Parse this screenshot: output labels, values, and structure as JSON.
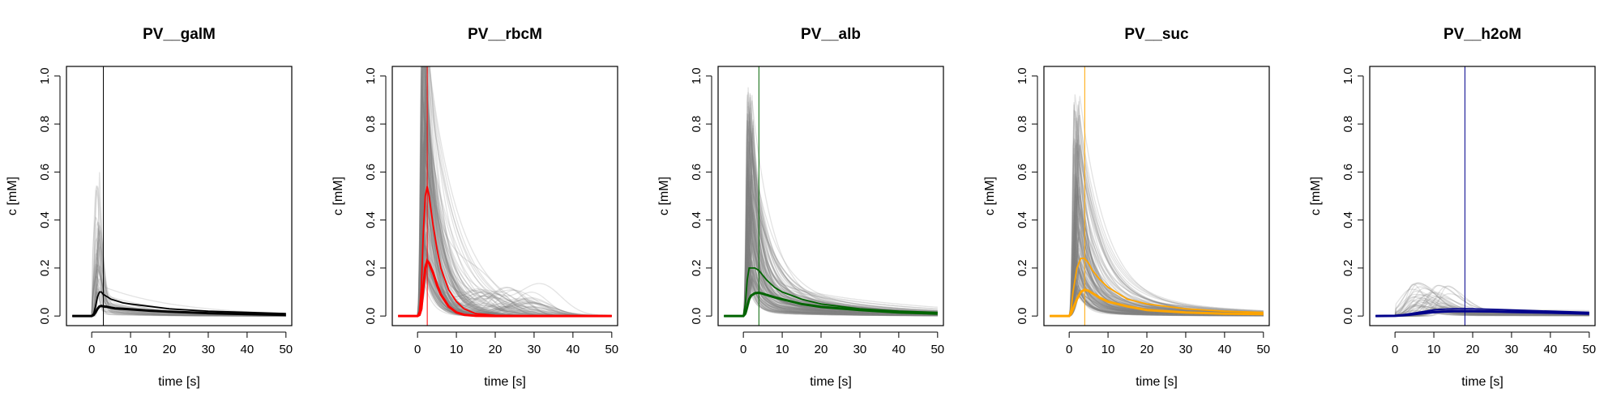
{
  "chart_data": [
    {
      "type": "line",
      "title": "PV__galM",
      "xlabel": "time [s]",
      "ylabel": "c [mM]",
      "xlim": [
        -6.5,
        51.5
      ],
      "ylim": [
        -0.04,
        1.04
      ],
      "xticks": [
        0,
        10,
        20,
        30,
        40,
        50
      ],
      "yticks": [
        0.0,
        0.2,
        0.4,
        0.6,
        0.8,
        1.0
      ],
      "xtick_labels": [
        "0",
        "10",
        "20",
        "30",
        "40",
        "50"
      ],
      "ytick_labels": [
        "0.0",
        "0.2",
        "0.4",
        "0.6",
        "0.8",
        "1.0"
      ],
      "grid": false,
      "color": "#000000",
      "vline_x": 3.0,
      "samples": {
        "count": 40,
        "shape": "bolus",
        "peak_time_range": [
          1.0,
          2.2
        ],
        "peak_value_range": [
          0.1,
          0.6
        ],
        "width_range": [
          0.6,
          2.0
        ],
        "tail_fraction_range": [
          0.05,
          0.3
        ],
        "tail_decay_range": [
          0.05,
          0.12
        ]
      },
      "series": [
        {
          "role": "upper-bound",
          "x": [
            -5,
            0,
            0.5,
            1,
            1.5,
            2,
            2.5,
            3,
            4,
            5,
            6,
            8,
            10,
            15,
            20,
            30,
            40,
            50
          ],
          "y": [
            0,
            0,
            0.01,
            0.04,
            0.08,
            0.1,
            0.1,
            0.09,
            0.08,
            0.07,
            0.065,
            0.055,
            0.05,
            0.04,
            0.03,
            0.02,
            0.015,
            0.01
          ]
        },
        {
          "role": "mean",
          "x": [
            -5,
            0,
            0.5,
            1,
            1.5,
            2,
            2.5,
            3,
            4,
            5,
            6,
            8,
            10,
            15,
            20,
            30,
            40,
            50
          ],
          "y": [
            0,
            0,
            0.005,
            0.015,
            0.03,
            0.04,
            0.042,
            0.04,
            0.038,
            0.035,
            0.032,
            0.03,
            0.028,
            0.022,
            0.018,
            0.012,
            0.008,
            0.005
          ]
        }
      ]
    },
    {
      "type": "line",
      "title": "PV__rbcM",
      "xlabel": "time [s]",
      "ylabel": "c [mM]",
      "xlim": [
        -6.5,
        51.5
      ],
      "ylim": [
        -0.04,
        1.04
      ],
      "xticks": [
        0,
        10,
        20,
        30,
        40,
        50
      ],
      "yticks": [
        0.0,
        0.2,
        0.4,
        0.6,
        0.8,
        1.0
      ],
      "xtick_labels": [
        "0",
        "10",
        "20",
        "30",
        "40",
        "50"
      ],
      "ytick_labels": [
        "0.0",
        "0.2",
        "0.4",
        "0.6",
        "0.8",
        "1.0"
      ],
      "grid": false,
      "color": "#ff0000",
      "vline_x": 2.5,
      "samples": {
        "count": 150,
        "shape": "decay",
        "peak_time_range": [
          0.8,
          2.5
        ],
        "peak_value_range": [
          0.2,
          1.3
        ],
        "decay_range": [
          0.12,
          0.5
        ],
        "hump_fraction": 0.3,
        "hump_time_range": [
          15,
          32
        ],
        "hump_value_range": [
          0.02,
          0.12
        ]
      },
      "series": [
        {
          "role": "upper-bound",
          "x": [
            -5,
            0,
            0.5,
            1,
            1.5,
            2,
            2.5,
            3,
            4,
            5,
            6,
            8,
            10,
            12,
            15,
            20,
            25,
            30,
            40,
            50
          ],
          "y": [
            0,
            0,
            0.02,
            0.12,
            0.35,
            0.5,
            0.54,
            0.5,
            0.38,
            0.28,
            0.2,
            0.11,
            0.06,
            0.03,
            0.01,
            0.003,
            0.001,
            0,
            0,
            0
          ]
        },
        {
          "role": "mean",
          "x": [
            -5,
            0,
            0.5,
            1,
            1.5,
            2,
            2.5,
            3,
            4,
            5,
            6,
            8,
            10,
            12,
            15,
            20,
            30,
            40,
            50
          ],
          "y": [
            0,
            0,
            0.005,
            0.03,
            0.12,
            0.2,
            0.23,
            0.22,
            0.18,
            0.13,
            0.09,
            0.04,
            0.015,
            0.005,
            0.001,
            0,
            0,
            0,
            0
          ]
        }
      ]
    },
    {
      "type": "line",
      "title": "PV__alb",
      "xlabel": "time [s]",
      "ylabel": "c [mM]",
      "xlim": [
        -6.5,
        51.5
      ],
      "ylim": [
        -0.04,
        1.04
      ],
      "xticks": [
        0,
        10,
        20,
        30,
        40,
        50
      ],
      "yticks": [
        0.0,
        0.2,
        0.4,
        0.6,
        0.8,
        1.0
      ],
      "xtick_labels": [
        "0",
        "10",
        "20",
        "30",
        "40",
        "50"
      ],
      "ytick_labels": [
        "0.0",
        "0.2",
        "0.4",
        "0.6",
        "0.8",
        "1.0"
      ],
      "grid": false,
      "color": "#006400",
      "vline_x": 4.0,
      "samples": {
        "count": 150,
        "shape": "decay",
        "peak_time_range": [
          0.8,
          2.5
        ],
        "peak_value_range": [
          0.15,
          1.0
        ],
        "decay_range": [
          0.15,
          0.7
        ],
        "tail_fraction_range": [
          0.08,
          0.2
        ],
        "tail_decay_range": [
          0.03,
          0.06
        ]
      },
      "series": [
        {
          "role": "upper-bound",
          "x": [
            -5,
            0,
            0.5,
            1,
            1.5,
            2,
            3,
            4,
            5,
            6,
            8,
            10,
            15,
            20,
            30,
            40,
            50
          ],
          "y": [
            0,
            0,
            0.05,
            0.15,
            0.2,
            0.2,
            0.2,
            0.19,
            0.17,
            0.15,
            0.12,
            0.1,
            0.07,
            0.05,
            0.03,
            0.02,
            0.015
          ]
        },
        {
          "role": "mean",
          "x": [
            -5,
            0,
            0.5,
            1,
            1.5,
            2,
            3,
            4,
            5,
            6,
            8,
            10,
            15,
            20,
            30,
            40,
            50
          ],
          "y": [
            0,
            0,
            0.01,
            0.04,
            0.07,
            0.085,
            0.095,
            0.097,
            0.093,
            0.088,
            0.078,
            0.07,
            0.05,
            0.038,
            0.025,
            0.015,
            0.01
          ]
        }
      ]
    },
    {
      "type": "line",
      "title": "PV__suc",
      "xlabel": "time [s]",
      "ylabel": "c [mM]",
      "xlim": [
        -6.5,
        51.5
      ],
      "ylim": [
        -0.04,
        1.04
      ],
      "xticks": [
        0,
        10,
        20,
        30,
        40,
        50
      ],
      "yticks": [
        0.0,
        0.2,
        0.4,
        0.6,
        0.8,
        1.0
      ],
      "xtick_labels": [
        "0",
        "10",
        "20",
        "30",
        "40",
        "50"
      ],
      "ytick_labels": [
        "0.0",
        "0.2",
        "0.4",
        "0.6",
        "0.8",
        "1.0"
      ],
      "grid": false,
      "color": "#ffa500",
      "vline_x": 4.0,
      "samples": {
        "count": 150,
        "shape": "decay",
        "peak_time_range": [
          1.0,
          2.8
        ],
        "peak_value_range": [
          0.1,
          0.95
        ],
        "decay_range": [
          0.15,
          0.5
        ],
        "tail_fraction_range": [
          0.08,
          0.18
        ],
        "tail_decay_range": [
          0.03,
          0.06
        ]
      },
      "series": [
        {
          "role": "upper-bound",
          "x": [
            -5,
            0,
            0.5,
            1,
            2,
            3,
            4,
            5,
            6,
            8,
            10,
            15,
            20,
            30,
            40,
            50
          ],
          "y": [
            0,
            0,
            0.03,
            0.1,
            0.2,
            0.24,
            0.24,
            0.22,
            0.19,
            0.15,
            0.12,
            0.07,
            0.05,
            0.03,
            0.02,
            0.015
          ]
        },
        {
          "role": "mean",
          "x": [
            -5,
            0,
            0.5,
            1,
            2,
            3,
            4,
            5,
            6,
            8,
            10,
            15,
            20,
            30,
            40,
            50
          ],
          "y": [
            0,
            0,
            0.01,
            0.03,
            0.07,
            0.1,
            0.11,
            0.105,
            0.095,
            0.075,
            0.06,
            0.04,
            0.025,
            0.015,
            0.01,
            0.008
          ]
        }
      ]
    },
    {
      "type": "line",
      "title": "PV__h2oM",
      "xlabel": "time [s]",
      "ylabel": "c [mM]",
      "xlim": [
        -6.5,
        51.5
      ],
      "ylim": [
        -0.04,
        1.04
      ],
      "xticks": [
        0,
        10,
        20,
        30,
        40,
        50
      ],
      "yticks": [
        0.0,
        0.2,
        0.4,
        0.6,
        0.8,
        1.0
      ],
      "xtick_labels": [
        "0",
        "10",
        "20",
        "30",
        "40",
        "50"
      ],
      "ytick_labels": [
        "0.0",
        "0.2",
        "0.4",
        "0.6",
        "0.8",
        "1.0"
      ],
      "grid": false,
      "color": "#00008b",
      "vline_x": 18.0,
      "samples": {
        "count": 60,
        "shape": "bolus",
        "peak_time_range": [
          4,
          14
        ],
        "peak_value_range": [
          0.02,
          0.14
        ],
        "width_range": [
          3,
          8
        ],
        "tail_fraction_range": [
          0.1,
          0.3
        ],
        "tail_decay_range": [
          0.01,
          0.03
        ]
      },
      "series": [
        {
          "role": "upper-bound",
          "x": [
            -5,
            0,
            2,
            4,
            6,
            8,
            10,
            12,
            15,
            18,
            20,
            25,
            30,
            40,
            50
          ],
          "y": [
            0,
            0.002,
            0.005,
            0.01,
            0.015,
            0.02,
            0.025,
            0.028,
            0.03,
            0.03,
            0.03,
            0.028,
            0.025,
            0.02,
            0.015
          ]
        },
        {
          "role": "mean",
          "x": [
            -5,
            0,
            2,
            4,
            6,
            8,
            10,
            12,
            15,
            18,
            20,
            25,
            30,
            40,
            50
          ],
          "y": [
            0,
            0.001,
            0.003,
            0.006,
            0.01,
            0.013,
            0.016,
            0.018,
            0.02,
            0.02,
            0.02,
            0.019,
            0.017,
            0.014,
            0.01
          ]
        }
      ]
    }
  ]
}
